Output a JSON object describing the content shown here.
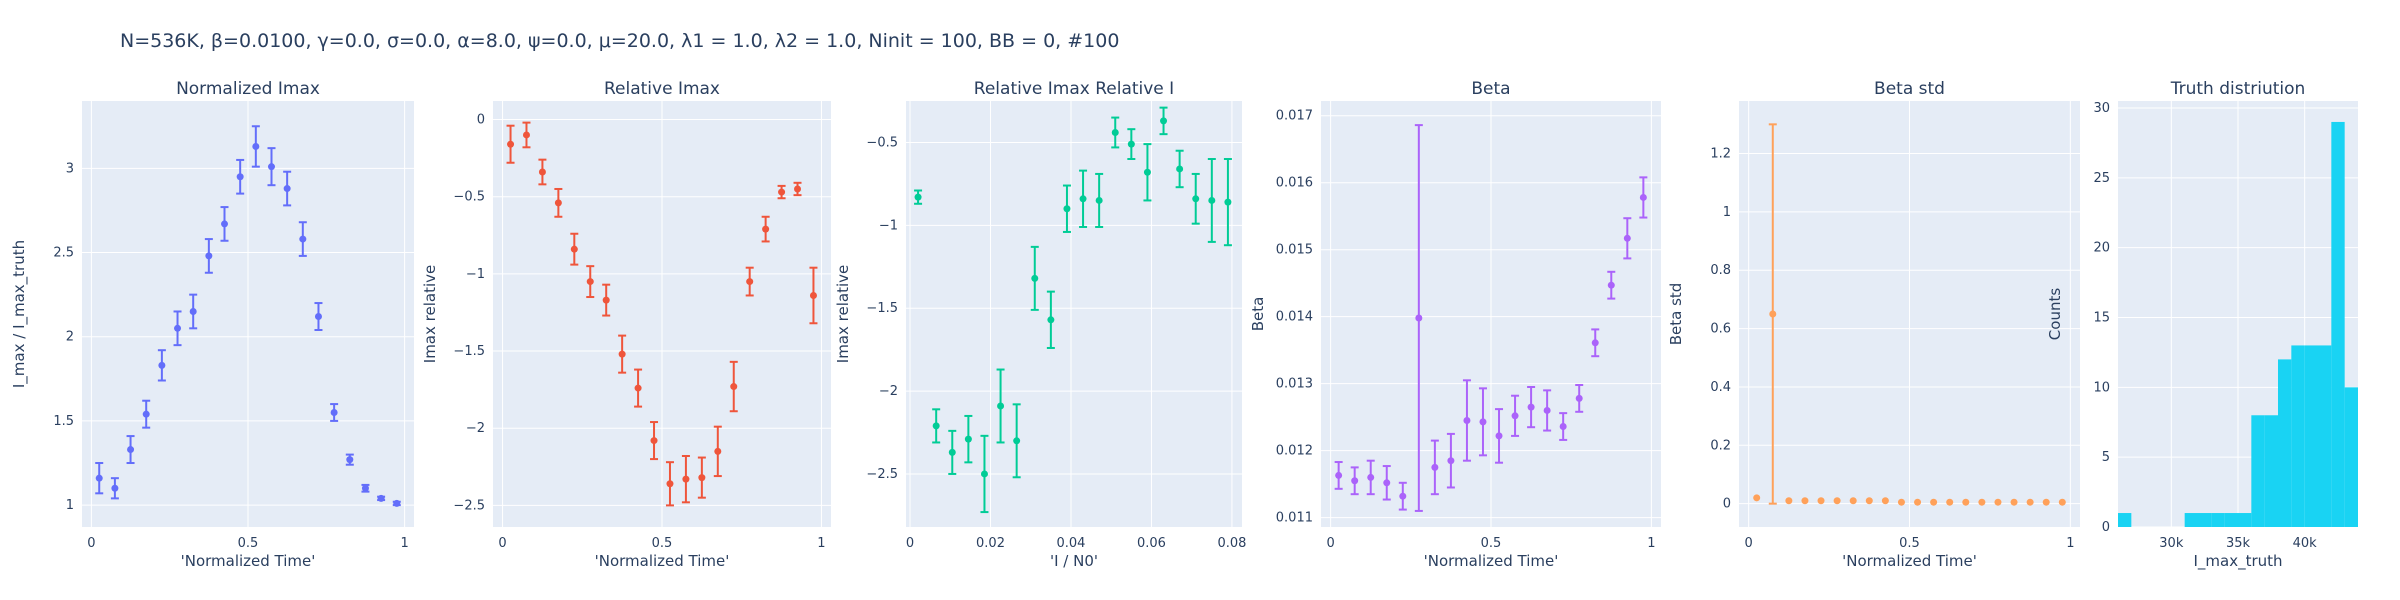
{
  "suptitle": "N=536K, β=0.0100, γ=0.0, σ=0.0,  α=8.0, ψ=0.0, μ=20.0, λ1 = 1.0, λ2 = 1.0, Ninit = 100, BB = 0, #100",
  "colors": {
    "plot_bg": "#e5ecf6",
    "grid": "#ffffff",
    "text": "#2a3f5f"
  },
  "chart_data": [
    {
      "type": "scatter",
      "title": "Normalized Imax",
      "xlabel": "'Normalized Time'",
      "ylabel": "I_max / I_max_truth",
      "color": "#636efa",
      "xlim": [
        -0.03,
        1.03
      ],
      "ylim": [
        0.87,
        3.4
      ],
      "xticks": [
        0,
        0.5,
        1
      ],
      "xticklabels": [
        "0",
        "0.5",
        "1"
      ],
      "yticks": [
        1,
        1.5,
        2,
        2.5,
        3
      ],
      "yticklabels": [
        "1",
        "1.5",
        "2",
        "2.5",
        "3"
      ],
      "x": [
        0.025,
        0.075,
        0.125,
        0.175,
        0.225,
        0.275,
        0.325,
        0.375,
        0.425,
        0.475,
        0.525,
        0.575,
        0.625,
        0.675,
        0.725,
        0.775,
        0.825,
        0.875,
        0.925,
        0.975
      ],
      "y": [
        1.16,
        1.1,
        1.33,
        1.54,
        1.83,
        2.05,
        2.15,
        2.48,
        2.67,
        2.95,
        3.13,
        3.01,
        2.88,
        2.58,
        2.12,
        1.55,
        1.27,
        1.1,
        1.04,
        1.01
      ],
      "err": [
        0.09,
        0.06,
        0.08,
        0.08,
        0.09,
        0.1,
        0.1,
        0.1,
        0.1,
        0.1,
        0.12,
        0.11,
        0.1,
        0.1,
        0.08,
        0.05,
        0.03,
        0.02,
        0.01,
        0.01
      ]
    },
    {
      "type": "scatter",
      "title": "Relative Imax",
      "xlabel": "'Normalized Time'",
      "ylabel": "Imax relative",
      "color": "#ef553b",
      "xlim": [
        -0.03,
        1.03
      ],
      "ylim": [
        -2.64,
        0.12
      ],
      "xticks": [
        0,
        0.5,
        1
      ],
      "xticklabels": [
        "0",
        "0.5",
        "1"
      ],
      "yticks": [
        0,
        -0.5,
        -1,
        -1.5,
        -2,
        -2.5
      ],
      "yticklabels": [
        "0",
        "−0.5",
        "−1",
        "−1.5",
        "−2",
        "−2.5"
      ],
      "x": [
        0.025,
        0.075,
        0.125,
        0.175,
        0.225,
        0.275,
        0.325,
        0.375,
        0.425,
        0.475,
        0.525,
        0.575,
        0.625,
        0.675,
        0.725,
        0.775,
        0.825,
        0.875,
        0.925,
        0.975
      ],
      "y": [
        -0.16,
        -0.1,
        -0.34,
        -0.54,
        -0.84,
        -1.05,
        -1.17,
        -1.52,
        -1.74,
        -2.08,
        -2.36,
        -2.33,
        -2.32,
        -2.15,
        -1.73,
        -1.05,
        -0.71,
        -0.47,
        -0.45,
        -1.14
      ],
      "err": [
        0.12,
        0.08,
        0.08,
        0.09,
        0.1,
        0.1,
        0.1,
        0.12,
        0.12,
        0.12,
        0.14,
        0.15,
        0.13,
        0.16,
        0.16,
        0.09,
        0.08,
        0.04,
        0.04,
        0.18
      ]
    },
    {
      "type": "scatter",
      "title": "Relative Imax Relative I",
      "xlabel": "'I / N0'",
      "ylabel": "Imax relative",
      "color": "#00cc96",
      "xlim": [
        -0.001,
        0.0825
      ],
      "ylim": [
        -2.82,
        -0.25
      ],
      "xticks": [
        0,
        0.02,
        0.04,
        0.06,
        0.08
      ],
      "xticklabels": [
        "0",
        "0.02",
        "0.04",
        "0.06",
        "0.08"
      ],
      "yticks": [
        -0.5,
        -1,
        -1.5,
        -2,
        -2.5
      ],
      "yticklabels": [
        "−0.5",
        "−1",
        "−1.5",
        "−2",
        "−2.5"
      ],
      "x": [
        0.002,
        0.0065,
        0.0105,
        0.0145,
        0.0185,
        0.0225,
        0.0265,
        0.031,
        0.035,
        0.039,
        0.043,
        0.047,
        0.051,
        0.055,
        0.059,
        0.063,
        0.067,
        0.071,
        0.075,
        0.079
      ],
      "y": [
        -0.83,
        -2.21,
        -2.37,
        -2.29,
        -2.5,
        -2.09,
        -2.3,
        -1.32,
        -1.57,
        -0.9,
        -0.84,
        -0.85,
        -0.44,
        -0.51,
        -0.68,
        -0.37,
        -0.66,
        -0.84,
        -0.85,
        -0.86
      ],
      "err": [
        0.04,
        0.1,
        0.13,
        0.14,
        0.23,
        0.22,
        0.22,
        0.19,
        0.17,
        0.14,
        0.17,
        0.16,
        0.09,
        0.09,
        0.17,
        0.08,
        0.11,
        0.15,
        0.25,
        0.26
      ]
    },
    {
      "type": "scatter",
      "title": "Beta",
      "xlabel": "'Normalized Time'",
      "ylabel": "Beta",
      "color": "#ab63fa",
      "xlim": [
        -0.03,
        1.03
      ],
      "ylim": [
        0.01086,
        0.01722
      ],
      "xticks": [
        0,
        0.5,
        1
      ],
      "xticklabels": [
        "0",
        "0.5",
        "1"
      ],
      "yticks": [
        0.011,
        0.012,
        0.013,
        0.014,
        0.015,
        0.016,
        0.017
      ],
      "yticklabels": [
        "0.011",
        "0.012",
        "0.013",
        "0.014",
        "0.015",
        "0.016",
        "0.017"
      ],
      "x": [
        0.025,
        0.075,
        0.125,
        0.175,
        0.225,
        0.275,
        0.325,
        0.375,
        0.425,
        0.475,
        0.525,
        0.575,
        0.625,
        0.675,
        0.725,
        0.775,
        0.825,
        0.875,
        0.925,
        0.975
      ],
      "y": [
        0.01163,
        0.01155,
        0.0116,
        0.01152,
        0.01132,
        0.01398,
        0.01175,
        0.01185,
        0.01245,
        0.01243,
        0.01222,
        0.01252,
        0.01265,
        0.0126,
        0.01236,
        0.01278,
        0.01361,
        0.01447,
        0.01517,
        0.01578
      ],
      "err": [
        0.0002,
        0.0002,
        0.00025,
        0.00025,
        0.0002,
        0.00288,
        0.0004,
        0.0004,
        0.0006,
        0.0005,
        0.0004,
        0.0003,
        0.0003,
        0.0003,
        0.0002,
        0.0002,
        0.0002,
        0.0002,
        0.0003,
        0.0003
      ]
    },
    {
      "type": "scatter",
      "title": "Beta std",
      "xlabel": "'Normalized Time'",
      "ylabel": "Beta std",
      "color": "#ffa15a",
      "xlim": [
        -0.03,
        1.03
      ],
      "ylim": [
        -0.08,
        1.38
      ],
      "xticks": [
        0,
        0.5,
        1
      ],
      "xticklabels": [
        "0",
        "0.5",
        "1"
      ],
      "yticks": [
        0,
        0.2,
        0.4,
        0.6,
        0.8,
        1,
        1.2
      ],
      "yticklabels": [
        "0",
        "0.2",
        "0.4",
        "0.6",
        "0.8",
        "1",
        "1.2"
      ],
      "x": [
        0.025,
        0.075,
        0.125,
        0.175,
        0.225,
        0.275,
        0.325,
        0.375,
        0.425,
        0.475,
        0.525,
        0.575,
        0.625,
        0.675,
        0.725,
        0.775,
        0.825,
        0.875,
        0.925,
        0.975
      ],
      "y": [
        0.02,
        0.65,
        0.01,
        0.01,
        0.01,
        0.01,
        0.01,
        0.01,
        0.01,
        0.005,
        0.005,
        0.005,
        0.005,
        0.005,
        0.005,
        0.005,
        0.005,
        0.005,
        0.005,
        0.005
      ],
      "err": [
        0,
        0.65,
        0,
        0,
        0,
        0,
        0,
        0,
        0,
        0,
        0,
        0,
        0,
        0,
        0,
        0,
        0,
        0,
        0,
        0
      ]
    },
    {
      "type": "histogram",
      "title": "Truth distriution",
      "xlabel": "I_max_truth",
      "ylabel": "Counts",
      "color": "#19d3f3",
      "xlim": [
        26000,
        44000
      ],
      "ylim": [
        0,
        30.5
      ],
      "xticks": [
        30000,
        35000,
        40000
      ],
      "xticklabels": [
        "30k",
        "35k",
        "40k"
      ],
      "yticks": [
        0,
        5,
        10,
        15,
        20,
        25,
        30
      ],
      "yticklabels": [
        "0",
        "5",
        "10",
        "15",
        "20",
        "25",
        "30"
      ],
      "bins": [
        {
          "x0": 26000,
          "x1": 27000,
          "count": 1
        },
        {
          "x0": 27000,
          "x1": 28000,
          "count": 0
        },
        {
          "x0": 28000,
          "x1": 29000,
          "count": 0
        },
        {
          "x0": 29000,
          "x1": 30000,
          "count": 0
        },
        {
          "x0": 30000,
          "x1": 31000,
          "count": 0
        },
        {
          "x0": 31000,
          "x1": 32000,
          "count": 1
        },
        {
          "x0": 32000,
          "x1": 33000,
          "count": 1
        },
        {
          "x0": 33000,
          "x1": 34000,
          "count": 1
        },
        {
          "x0": 34000,
          "x1": 35000,
          "count": 1
        },
        {
          "x0": 35000,
          "x1": 36000,
          "count": 1
        },
        {
          "x0": 36000,
          "x1": 37000,
          "count": 8
        },
        {
          "x0": 37000,
          "x1": 38000,
          "count": 8
        },
        {
          "x0": 38000,
          "x1": 39000,
          "count": 12
        },
        {
          "x0": 39000,
          "x1": 40000,
          "count": 13
        },
        {
          "x0": 40000,
          "x1": 41000,
          "count": 13
        },
        {
          "x0": 41000,
          "x1": 42000,
          "count": 13
        },
        {
          "x0": 42000,
          "x1": 43000,
          "count": 29
        },
        {
          "x0": 43000,
          "x1": 44000,
          "count": 10
        }
      ]
    }
  ]
}
